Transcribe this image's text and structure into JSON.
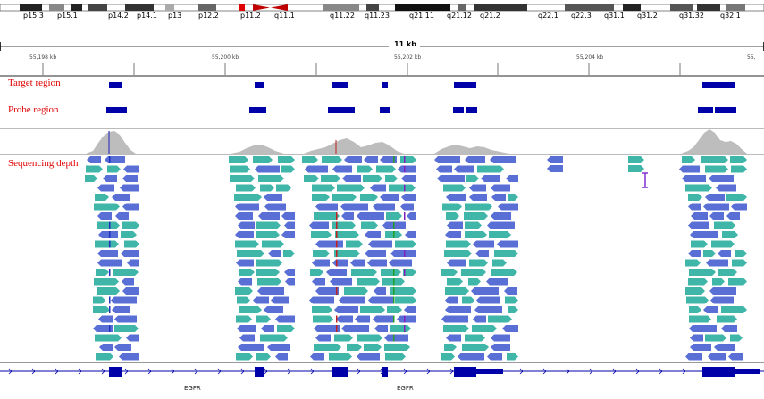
{
  "chromosome": {
    "bands": [
      "p15.3",
      "p15.1",
      "p14.2",
      "p14.1",
      "p13",
      "p12.2",
      "p11.2",
      "q11.1",
      "q11.22",
      "q11.23",
      "q21.11",
      "q21.12",
      "q21.2",
      "q22.1",
      "q22.3",
      "q31.1",
      "q31.2",
      "q31.32",
      "q32.1"
    ]
  },
  "ruler": {
    "span_label": "11 kb",
    "ticks": [
      "55,198 kb",
      "55,200 kb",
      "55,202 kb",
      "55,204 kb"
    ]
  },
  "tracks": {
    "target": "Target region",
    "probe": "Probe region",
    "depth": "Sequencing depth"
  },
  "gene": {
    "labels": [
      "EGFR",
      "EGFR"
    ]
  },
  "colors": {
    "forward_read": "#3fb6a8",
    "reverse_read": "#5a6fd6",
    "coverage": "#bdbdbd",
    "feature": "#0000a8",
    "track_label": "#e00000"
  }
}
